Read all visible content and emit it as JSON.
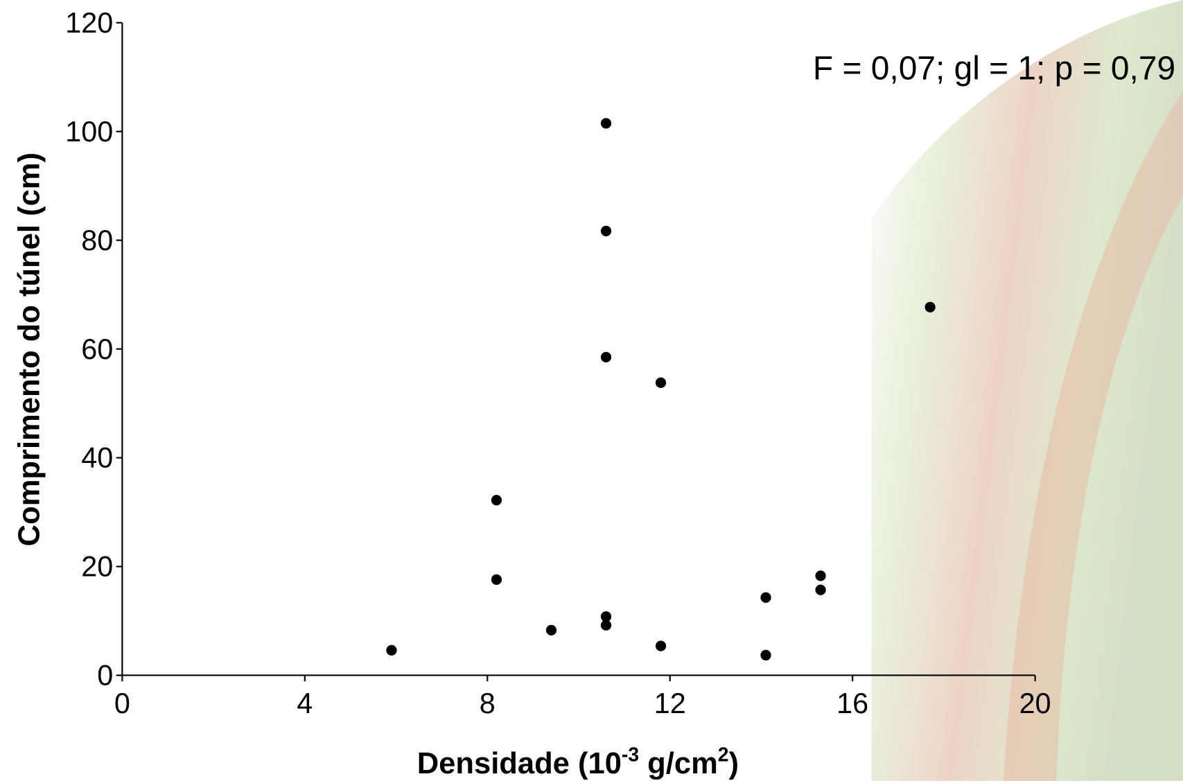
{
  "chart_data": {
    "type": "scatter",
    "annotation": "F = 0,07; gl = 1; p = 0,79",
    "x_label": [
      "Densidade (10",
      "-3",
      " g/cm",
      "2",
      ")"
    ],
    "y_label": "Comprimento do túnel (cm)",
    "xlim": [
      0,
      20
    ],
    "ylim": [
      0,
      120
    ],
    "xticks": [
      0,
      4,
      8,
      12,
      16,
      20
    ],
    "yticks": [
      0,
      20,
      40,
      60,
      80,
      100,
      120
    ],
    "color": "#000000",
    "series": [
      {
        "x": [
          5.9,
          8.2,
          8.2,
          9.4,
          10.6,
          10.6,
          10.6,
          10.6,
          10.6,
          11.8,
          11.8,
          14.1,
          14.1,
          15.3,
          15.3,
          17.7
        ],
        "values": [
          4.6,
          32.2,
          17.6,
          8.3,
          101.5,
          81.7,
          58.5,
          10.8,
          9.2,
          53.8,
          5.4,
          14.3,
          3.7,
          18.3,
          15.7,
          67.7
        ]
      }
    ]
  }
}
